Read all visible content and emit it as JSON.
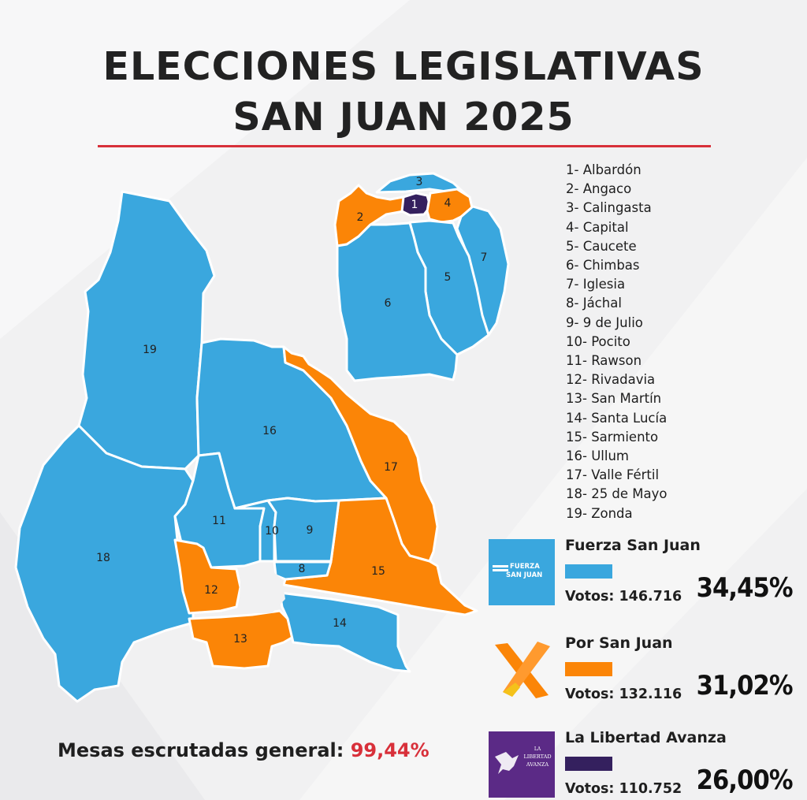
{
  "title_line1": "ELECCIONES LEGISLATIVAS",
  "title_line2": "SAN JUAN 2025",
  "colors": {
    "fuerza": "#3aa7de",
    "por_san_juan": "#fb8507",
    "libertad": "#34205e",
    "accent_red": "#d8303a"
  },
  "departments": [
    "1- Albardón",
    "2- Angaco",
    "3- Calingasta",
    "4- Capital",
    "5- Caucete",
    "6- Chimbas",
    "7- Iglesia",
    "8- Jáchal",
    "9- 9 de Julio",
    "10- Pocito",
    "11- Rawson",
    "12- Rivadavia",
    "13- San Martín",
    "14- Santa Lucía",
    "15- Sarmiento",
    "16- Ullum",
    "17- Valle Fértil",
    "18- 25 de Mayo",
    "19- Zonda"
  ],
  "map_labels": [
    "1",
    "2",
    "3",
    "4",
    "5",
    "6",
    "7",
    "8",
    "9",
    "10",
    "11",
    "12",
    "13",
    "14",
    "15",
    "16",
    "17",
    "18",
    "19"
  ],
  "parties": [
    {
      "name": "Fuerza San Juan",
      "votes": "Votos: 146.716",
      "pct": "34,45%",
      "logo_text_1": "FUERZA",
      "logo_text_2": "SAN JUAN",
      "color": "#3aa7de"
    },
    {
      "name": "Por San Juan",
      "votes": "Votos: 132.116",
      "pct": "31,02%",
      "color": "#fb8507"
    },
    {
      "name": "La Libertad Avanza",
      "votes": "Votos: 110.752",
      "pct": "26,00%",
      "logo_text_1": "LA",
      "logo_text_2": "LIBERTAD",
      "logo_text_3": "AVANZA",
      "color": "#34205e"
    }
  ],
  "mesas": {
    "label": "Mesas escrutadas general:",
    "value": "99,44%"
  }
}
